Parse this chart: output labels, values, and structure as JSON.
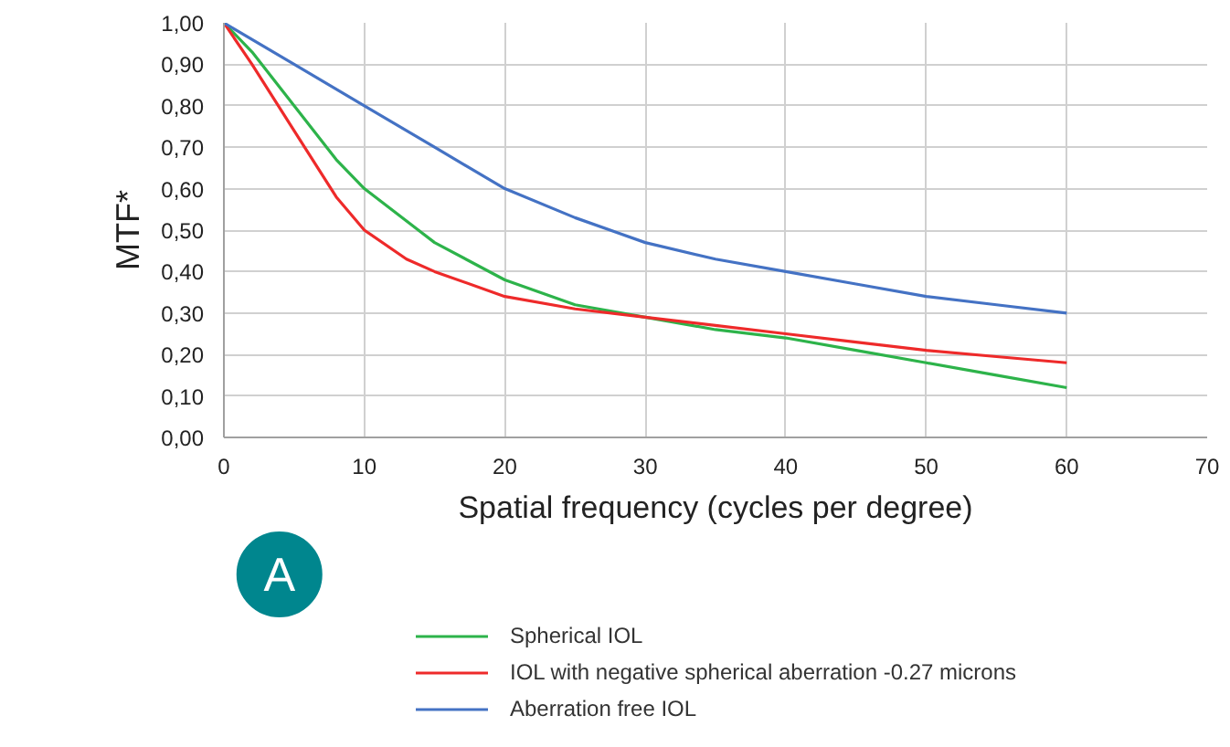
{
  "chart_data": {
    "type": "line",
    "xlabel": "Spatial frequency (cycles per degree)",
    "ylabel": "MTF*",
    "xlim": [
      0,
      70
    ],
    "xticks": [
      0,
      10,
      20,
      30,
      40,
      50,
      60,
      70
    ],
    "ylim": [
      0,
      1
    ],
    "yticks": [
      {
        "value": 0,
        "label": "0,00"
      },
      {
        "value": 0.1,
        "label": "0,10"
      },
      {
        "value": 0.2,
        "label": "0,20"
      },
      {
        "value": 0.3,
        "label": "0,30"
      },
      {
        "value": 0.4,
        "label": "0,40"
      },
      {
        "value": 0.5,
        "label": "0,50"
      },
      {
        "value": 0.6,
        "label": "0,60"
      },
      {
        "value": 0.7,
        "label": "0,70"
      },
      {
        "value": 0.8,
        "label": "0,80"
      },
      {
        "value": 0.9,
        "label": "0,90"
      },
      {
        "value": 1,
        "label": "1,00"
      }
    ],
    "grid": true,
    "legend": "bottom",
    "marker": "none",
    "line_style": "solid",
    "annotations": [
      "A"
    ],
    "series": [
      {
        "name": "Spherical IOL",
        "color": "#2db34a",
        "x": [
          0,
          2,
          5,
          8,
          10,
          15,
          20,
          25,
          30,
          35,
          40,
          45,
          50,
          55,
          60
        ],
        "values": [
          1.0,
          0.93,
          0.8,
          0.67,
          0.6,
          0.47,
          0.38,
          0.32,
          0.29,
          0.26,
          0.24,
          0.21,
          0.18,
          0.15,
          0.12
        ]
      },
      {
        "name": "IOL with negative spherical aberration -0.27 microns",
        "color": "#ee2a2a",
        "x": [
          0,
          2,
          5,
          8,
          10,
          13,
          15,
          20,
          25,
          30,
          35,
          40,
          45,
          50,
          55,
          60
        ],
        "values": [
          1.0,
          0.9,
          0.74,
          0.58,
          0.5,
          0.43,
          0.4,
          0.34,
          0.31,
          0.29,
          0.27,
          0.25,
          0.23,
          0.21,
          0.195,
          0.18
        ]
      },
      {
        "name": "Aberration free IOL",
        "color": "#4472c4",
        "x": [
          0,
          5,
          10,
          15,
          20,
          25,
          30,
          35,
          40,
          45,
          50,
          55,
          60
        ],
        "values": [
          1.0,
          0.9,
          0.8,
          0.7,
          0.6,
          0.53,
          0.47,
          0.43,
          0.4,
          0.37,
          0.34,
          0.32,
          0.3
        ]
      }
    ]
  }
}
